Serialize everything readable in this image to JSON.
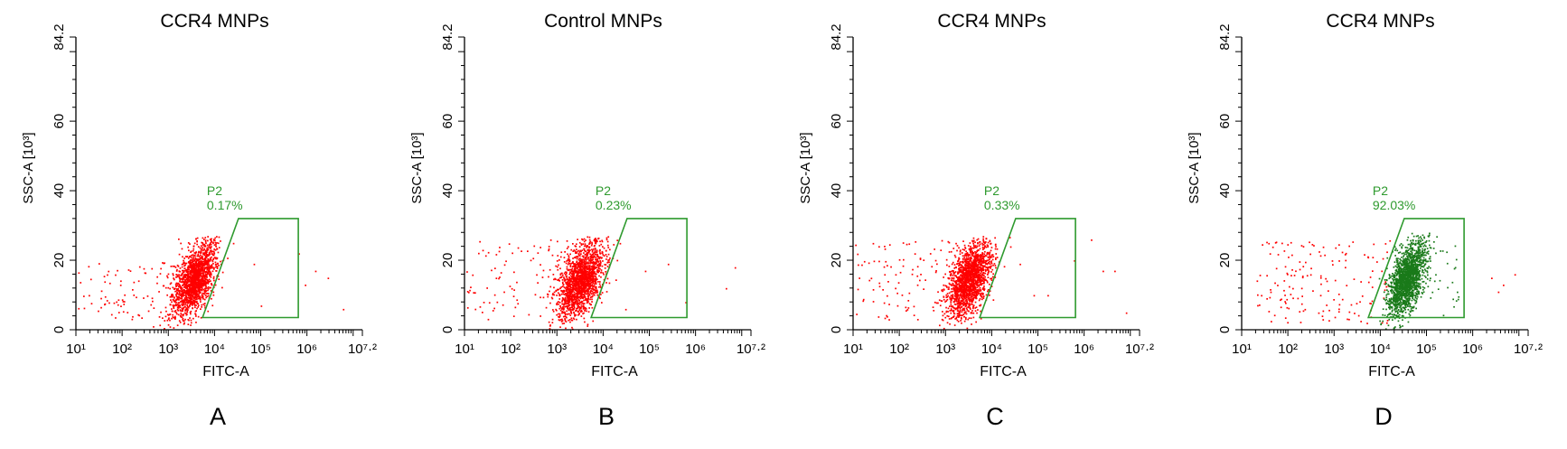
{
  "colors": {
    "axis": "#000000",
    "gate": "#2e9a2e",
    "negative_events": "#ff0000",
    "positive_events": "#1a7a1a"
  },
  "chart_data": [
    {
      "type": "scatter",
      "panel_label": "A",
      "title": "CCR4 MNPs",
      "xlabel": "FITC-A",
      "ylabel": "SSC-A [10³]",
      "x_scale": "log",
      "xlim": [
        10,
        15848931.9
      ],
      "ylim": [
        0,
        84.2
      ],
      "x_tick_labels": [
        "10¹",
        "10²",
        "10³",
        "10⁴",
        "10⁵",
        "10⁶",
        "10⁷·²"
      ],
      "y_tick_labels": [
        "0",
        "20",
        "40",
        "60",
        "84.2"
      ],
      "gate": {
        "name": "P2",
        "percent": "0.17%",
        "vertices": [
          [
            5500,
            3.5
          ],
          [
            33000,
            32
          ],
          [
            650000,
            32
          ],
          [
            650000,
            3.5
          ]
        ]
      },
      "series": [
        {
          "color": "#ff0000",
          "cloud": {
            "count": 1700,
            "center_log10_x": 3.55,
            "center_y": 14.5,
            "sd_log10_x": 0.22,
            "sd_y": 4.4,
            "slope_per_decade": 11,
            "ymax": 27
          },
          "tail": {
            "count": 90,
            "log10_x_range": [
              1.0,
              3.3
            ],
            "y_range": [
              3,
              20
            ]
          },
          "outliers": [
            [
              25000,
              25
            ],
            [
              70000,
              19
            ],
            [
              100000,
              7
            ],
            [
              650000,
              22
            ],
            [
              900000,
              13
            ],
            [
              1500000,
              17
            ],
            [
              2800000,
              15
            ],
            [
              6000000,
              6
            ]
          ]
        }
      ]
    },
    {
      "type": "scatter",
      "panel_label": "B",
      "title": "Control MNPs",
      "xlabel": "FITC-A",
      "ylabel": "SSC-A [10³]",
      "x_scale": "log",
      "xlim": [
        10,
        15848931.9
      ],
      "ylim": [
        0,
        84.2
      ],
      "x_tick_labels": [
        "10¹",
        "10²",
        "10³",
        "10⁴",
        "10⁵",
        "10⁶",
        "10⁷·²"
      ],
      "y_tick_labels": [
        "0",
        "20",
        "40",
        "60",
        "84.2"
      ],
      "gate": {
        "name": "P2",
        "percent": "0.23%",
        "vertices": [
          [
            5500,
            3.5
          ],
          [
            33000,
            32
          ],
          [
            650000,
            32
          ],
          [
            650000,
            3.5
          ]
        ]
      },
      "series": [
        {
          "color": "#ff0000",
          "cloud": {
            "count": 1700,
            "center_log10_x": 3.5,
            "center_y": 14,
            "sd_log10_x": 0.24,
            "sd_y": 4.6,
            "slope_per_decade": 11,
            "ymax": 27
          },
          "tail": {
            "count": 110,
            "log10_x_range": [
              1.0,
              3.3
            ],
            "y_range": [
              3,
              26
            ]
          },
          "outliers": [
            [
              9000,
              8
            ],
            [
              30000,
              6
            ],
            [
              80000,
              17
            ],
            [
              250000,
              19
            ],
            [
              600000,
              8
            ],
            [
              7000000,
              18
            ],
            [
              4500000,
              12
            ]
          ]
        }
      ]
    },
    {
      "type": "scatter",
      "panel_label": "C",
      "title": "CCR4 MNPs",
      "xlabel": "FITC-A",
      "ylabel": "SSC-A [10³]",
      "x_scale": "log",
      "xlim": [
        10,
        15848931.9
      ],
      "ylim": [
        0,
        84.2
      ],
      "x_tick_labels": [
        "10¹",
        "10²",
        "10³",
        "10⁴",
        "10⁵",
        "10⁶",
        "10⁷·²"
      ],
      "y_tick_labels": [
        "0",
        "20",
        "40",
        "60",
        "84.2"
      ],
      "gate": {
        "name": "P2",
        "percent": "0.33%",
        "vertices": [
          [
            5500,
            3.5
          ],
          [
            33000,
            32
          ],
          [
            650000,
            32
          ],
          [
            650000,
            3.5
          ]
        ]
      },
      "series": [
        {
          "color": "#ff0000",
          "cloud": {
            "count": 1700,
            "center_log10_x": 3.5,
            "center_y": 14.5,
            "sd_log10_x": 0.23,
            "sd_y": 4.5,
            "slope_per_decade": 11,
            "ymax": 27
          },
          "tail": {
            "count": 110,
            "log10_x_range": [
              1.0,
              3.3
            ],
            "y_range": [
              3,
              26
            ]
          },
          "outliers": [
            [
              25000,
              24
            ],
            [
              40000,
              19
            ],
            [
              80000,
              10
            ],
            [
              160000,
              10
            ],
            [
              600000,
              20
            ],
            [
              1400000,
              26
            ],
            [
              2500000,
              17
            ],
            [
              4500000,
              17
            ],
            [
              8000000,
              5
            ]
          ]
        }
      ]
    },
    {
      "type": "scatter",
      "panel_label": "D",
      "title": "CCR4 MNPs",
      "xlabel": "FITC-A",
      "ylabel": "SSC-A [10³]",
      "x_scale": "log",
      "xlim": [
        10,
        15848931.9
      ],
      "ylim": [
        0,
        84.2
      ],
      "x_tick_labels": [
        "10¹",
        "10²",
        "10³",
        "10⁴",
        "10⁵",
        "10⁶",
        "10⁷·²"
      ],
      "y_tick_labels": [
        "0",
        "20",
        "40",
        "60",
        "84.2"
      ],
      "gate": {
        "name": "P2",
        "percent": "92.03%",
        "vertices": [
          [
            5500,
            3.5
          ],
          [
            33000,
            32
          ],
          [
            650000,
            32
          ],
          [
            650000,
            3.5
          ]
        ]
      },
      "series": [
        {
          "color": "#ff0000",
          "cloud": {
            "count": 0,
            "center_log10_x": 3.0,
            "center_y": 10,
            "sd_log10_x": 0.3,
            "sd_y": 4,
            "slope_per_decade": 0,
            "ymax": 27
          },
          "tail": {
            "count": 160,
            "log10_x_range": [
              1.3,
              4.2
            ],
            "y_range": [
              2,
              26
            ]
          },
          "outliers": [
            [
              2500000,
              15
            ],
            [
              3500000,
              11
            ],
            [
              4500000,
              13
            ],
            [
              8000000,
              16
            ]
          ]
        },
        {
          "color": "#1a7a1a",
          "cloud": {
            "count": 1700,
            "center_log10_x": 4.55,
            "center_y": 14.5,
            "sd_log10_x": 0.2,
            "sd_y": 4.3,
            "slope_per_decade": 14,
            "ymax": 28
          },
          "tail": {
            "count": 30,
            "log10_x_range": [
              4.9,
              5.7
            ],
            "y_range": [
              4,
              28
            ]
          },
          "outliers": []
        }
      ]
    }
  ]
}
